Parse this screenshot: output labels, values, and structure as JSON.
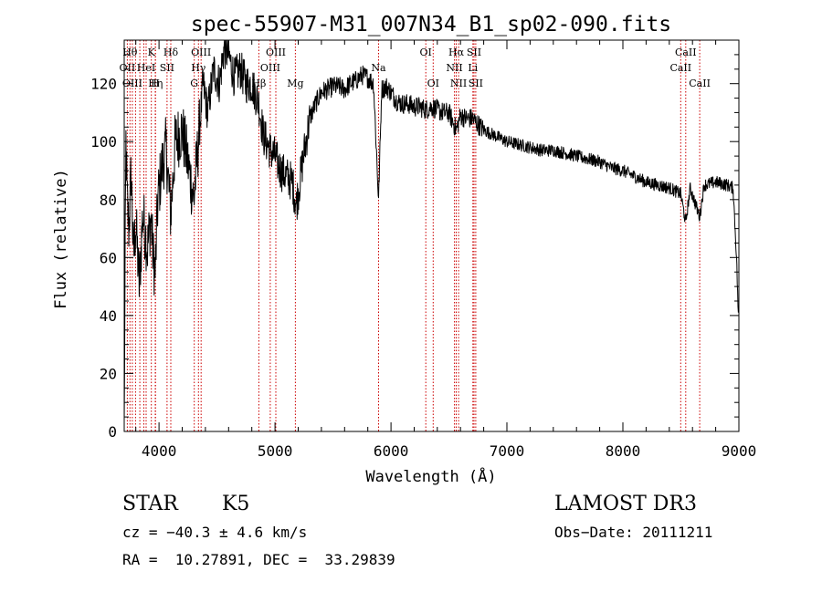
{
  "chart_data": {
    "type": "line",
    "title": "spec-55907-M31_007N34_B1_sp02-090.fits",
    "xlabel": "Wavelength (Å)",
    "ylabel": "Flux (relative)",
    "xlim": [
      3700,
      9000
    ],
    "ylim": [
      0,
      135
    ],
    "xticks": [
      4000,
      5000,
      6000,
      7000,
      8000,
      9000
    ],
    "yticks": [
      0,
      20,
      40,
      60,
      80,
      100,
      120
    ],
    "grid": false,
    "series": [
      {
        "name": "spectrum",
        "anchors": [
          [
            3700,
            0
          ],
          [
            3705,
            40
          ],
          [
            3715,
            100
          ],
          [
            3725,
            80
          ],
          [
            3740,
            70
          ],
          [
            3760,
            90
          ],
          [
            3780,
            60
          ],
          [
            3800,
            72
          ],
          [
            3830,
            50
          ],
          [
            3860,
            75
          ],
          [
            3900,
            63
          ],
          [
            3930,
            74
          ],
          [
            3950,
            60
          ],
          [
            3968,
            55
          ],
          [
            3990,
            80
          ],
          [
            4020,
            90
          ],
          [
            4060,
            98
          ],
          [
            4101,
            75
          ],
          [
            4140,
            100
          ],
          [
            4200,
            104
          ],
          [
            4260,
            90
          ],
          [
            4300,
            80
          ],
          [
            4330,
            95
          ],
          [
            4380,
            120
          ],
          [
            4420,
            110
          ],
          [
            4470,
            125
          ],
          [
            4520,
            120
          ],
          [
            4560,
            132
          ],
          [
            4600,
            130
          ],
          [
            4650,
            122
          ],
          [
            4700,
            125
          ],
          [
            4750,
            120
          ],
          [
            4800,
            120
          ],
          [
            4861,
            113
          ],
          [
            4900,
            102
          ],
          [
            4960,
            97
          ],
          [
            5000,
            95
          ],
          [
            5050,
            90
          ],
          [
            5100,
            88
          ],
          [
            5150,
            86
          ],
          [
            5183,
            78
          ],
          [
            5210,
            85
          ],
          [
            5250,
            96
          ],
          [
            5300,
            108
          ],
          [
            5350,
            113
          ],
          [
            5400,
            117
          ],
          [
            5450,
            118
          ],
          [
            5500,
            119
          ],
          [
            5550,
            119
          ],
          [
            5600,
            118
          ],
          [
            5650,
            120
          ],
          [
            5700,
            121
          ],
          [
            5750,
            123
          ],
          [
            5800,
            122
          ],
          [
            5850,
            120
          ],
          [
            5893,
            80
          ],
          [
            5920,
            118
          ],
          [
            5960,
            119
          ],
          [
            6000,
            117
          ],
          [
            6050,
            114
          ],
          [
            6100,
            113
          ],
          [
            6150,
            113
          ],
          [
            6200,
            112
          ],
          [
            6250,
            112
          ],
          [
            6300,
            111
          ],
          [
            6350,
            112
          ],
          [
            6400,
            111
          ],
          [
            6450,
            110
          ],
          [
            6500,
            110
          ],
          [
            6563,
            104
          ],
          [
            6600,
            109
          ],
          [
            6650,
            108
          ],
          [
            6700,
            108
          ],
          [
            6750,
            106
          ],
          [
            6800,
            104
          ],
          [
            6850,
            103
          ],
          [
            6900,
            102
          ],
          [
            6950,
            101
          ],
          [
            7000,
            100
          ],
          [
            7100,
            99
          ],
          [
            7200,
            98
          ],
          [
            7300,
            97
          ],
          [
            7400,
            97
          ],
          [
            7500,
            96
          ],
          [
            7600,
            95
          ],
          [
            7700,
            94
          ],
          [
            7800,
            93
          ],
          [
            7900,
            91
          ],
          [
            8000,
            90
          ],
          [
            8100,
            88
          ],
          [
            8200,
            86
          ],
          [
            8300,
            85
          ],
          [
            8400,
            84
          ],
          [
            8498,
            82
          ],
          [
            8542,
            72
          ],
          [
            8580,
            84
          ],
          [
            8662,
            74
          ],
          [
            8700,
            85
          ],
          [
            8800,
            86
          ],
          [
            8900,
            85
          ],
          [
            8950,
            84
          ],
          [
            8980,
            60
          ],
          [
            8995,
            40
          ]
        ]
      }
    ],
    "lines": [
      {
        "wl": 3727,
        "label": "OII",
        "row": 2
      },
      {
        "wl": 3750,
        "label": "Hθ",
        "row": 1
      },
      {
        "wl": 3770,
        "label": "OIII",
        "row": 3
      },
      {
        "wl": 3798,
        "label": "",
        "row": 0
      },
      {
        "wl": 3835,
        "label": "",
        "row": 0
      },
      {
        "wl": 3869,
        "label": "",
        "row": 0
      },
      {
        "wl": 3889,
        "label": "HeI",
        "row": 2
      },
      {
        "wl": 3934,
        "label": "K",
        "row": 1
      },
      {
        "wl": 3968,
        "label": "H",
        "row": 3
      },
      {
        "wl": 3970,
        "label": "Hη",
        "row": 3
      },
      {
        "wl": 4069,
        "label": "SII",
        "row": 2
      },
      {
        "wl": 4102,
        "label": "Hδ",
        "row": 1
      },
      {
        "wl": 4304,
        "label": "G",
        "row": 3
      },
      {
        "wl": 4340,
        "label": "Hγ",
        "row": 2
      },
      {
        "wl": 4363,
        "label": "OIII",
        "row": 1
      },
      {
        "wl": 4861,
        "label": "Hβ",
        "row": 3
      },
      {
        "wl": 4959,
        "label": "OIII",
        "row": 2
      },
      {
        "wl": 5007,
        "label": "OIII",
        "row": 1
      },
      {
        "wl": 5176,
        "label": "Mg",
        "row": 3
      },
      {
        "wl": 5893,
        "label": "Na",
        "row": 2
      },
      {
        "wl": 6300,
        "label": "OI",
        "row": 1
      },
      {
        "wl": 6364,
        "label": "OI",
        "row": 3
      },
      {
        "wl": 6548,
        "label": "NII",
        "row": 2
      },
      {
        "wl": 6563,
        "label": "Hα",
        "row": 1
      },
      {
        "wl": 6583,
        "label": "NII",
        "row": 3
      },
      {
        "wl": 6707,
        "label": "Li",
        "row": 2
      },
      {
        "wl": 6716,
        "label": "SII",
        "row": 1
      },
      {
        "wl": 6731,
        "label": "SII",
        "row": 3
      },
      {
        "wl": 8498,
        "label": "CaII",
        "row": 2
      },
      {
        "wl": 8542,
        "label": "CaII",
        "row": 1
      },
      {
        "wl": 8662,
        "label": "CaII",
        "row": 3
      }
    ]
  },
  "info": {
    "class": "STAR",
    "subclass": "K5",
    "survey": "LAMOST DR3",
    "cz": "cz = −40.3 ± 4.6 km/s",
    "obsdate": "Obs−Date: 20111211",
    "radec": "RA =  10.27891, DEC =  33.29839"
  },
  "colors": {
    "axis": "#000000",
    "spectrum": "#000000",
    "linemark": "#cc0000"
  }
}
